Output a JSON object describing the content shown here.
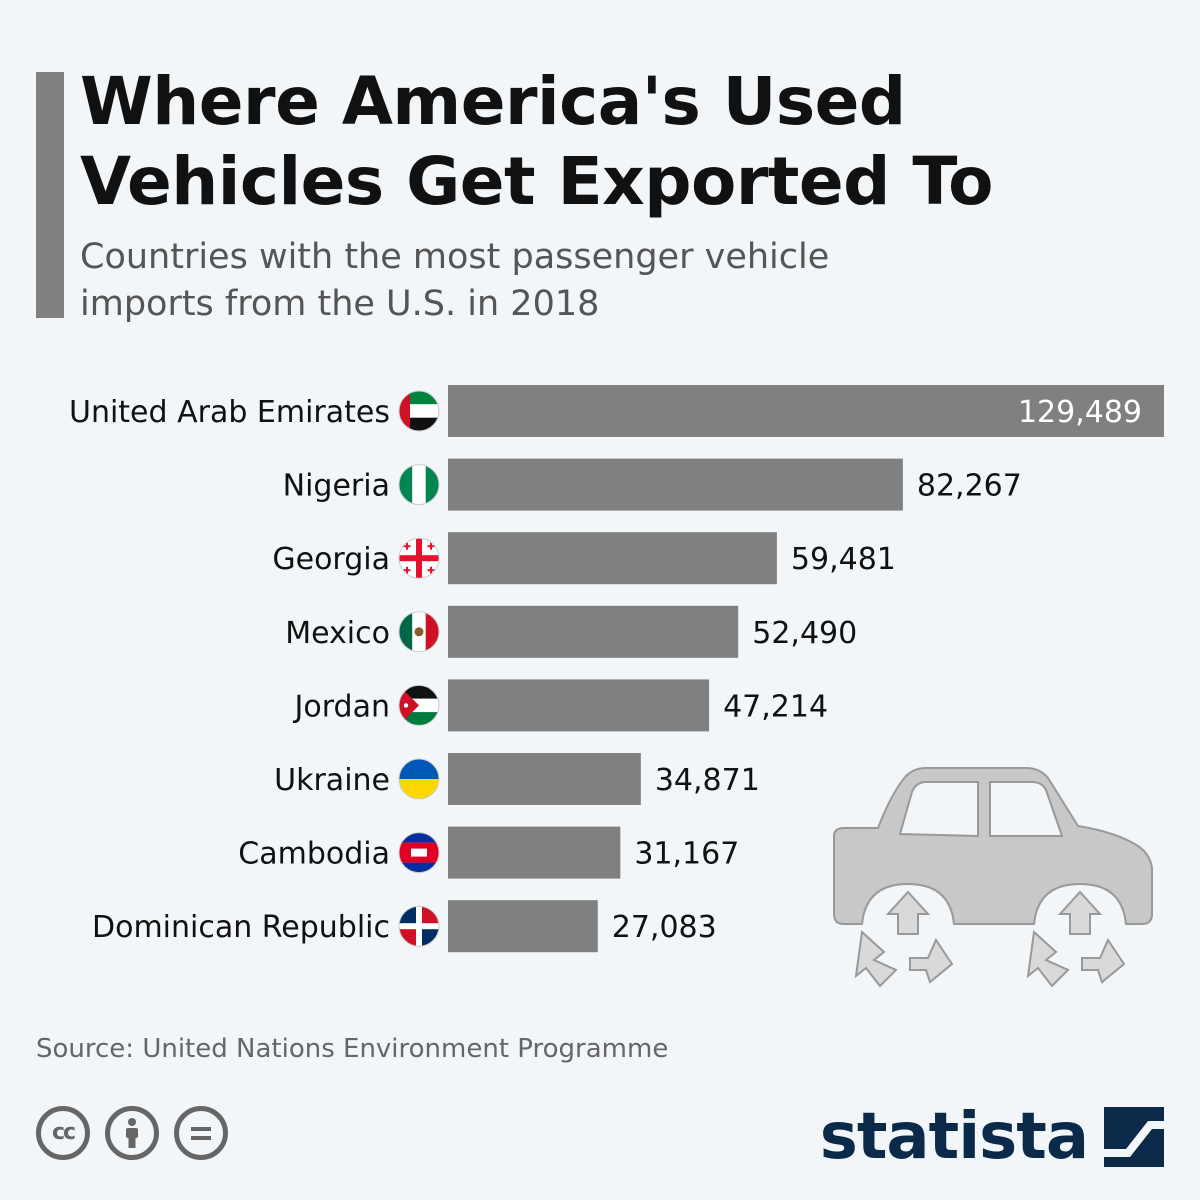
{
  "header": {
    "title_line1": "Where America's Used",
    "title_line2": "Vehicles Get Exported To",
    "subtitle_line1": "Countries with the most passenger vehicle",
    "subtitle_line2": "imports from the U.S. in 2018"
  },
  "chart_data": {
    "type": "bar",
    "orientation": "horizontal",
    "categories": [
      "United Arab Emirates",
      "Nigeria",
      "Georgia",
      "Mexico",
      "Jordan",
      "Ukraine",
      "Cambodia",
      "Dominican Republic"
    ],
    "values": [
      129489,
      82267,
      59481,
      52490,
      47214,
      34871,
      31167,
      27083
    ],
    "value_labels": [
      "129,489",
      "82,267",
      "59,481",
      "52,490",
      "47,214",
      "34,871",
      "31,167",
      "27,083"
    ],
    "flags": [
      "uae-flag-icon",
      "nigeria-flag-icon",
      "georgia-flag-icon",
      "mexico-flag-icon",
      "jordan-flag-icon",
      "ukraine-flag-icon",
      "cambodia-flag-icon",
      "dominican-republic-flag-icon"
    ],
    "xlim": [
      0,
      129489
    ],
    "bar_color": "#808080",
    "grid": false,
    "legend": "none"
  },
  "illustration": {
    "icon": "car-recycle-icon",
    "color": "#c8c8c8"
  },
  "footer": {
    "source": "Source: United Nations Environment Programme",
    "cc_label": "cc",
    "license_icons": [
      "cc-icon",
      "attribution-icon",
      "no-derivatives-icon"
    ],
    "brand": "statista"
  }
}
